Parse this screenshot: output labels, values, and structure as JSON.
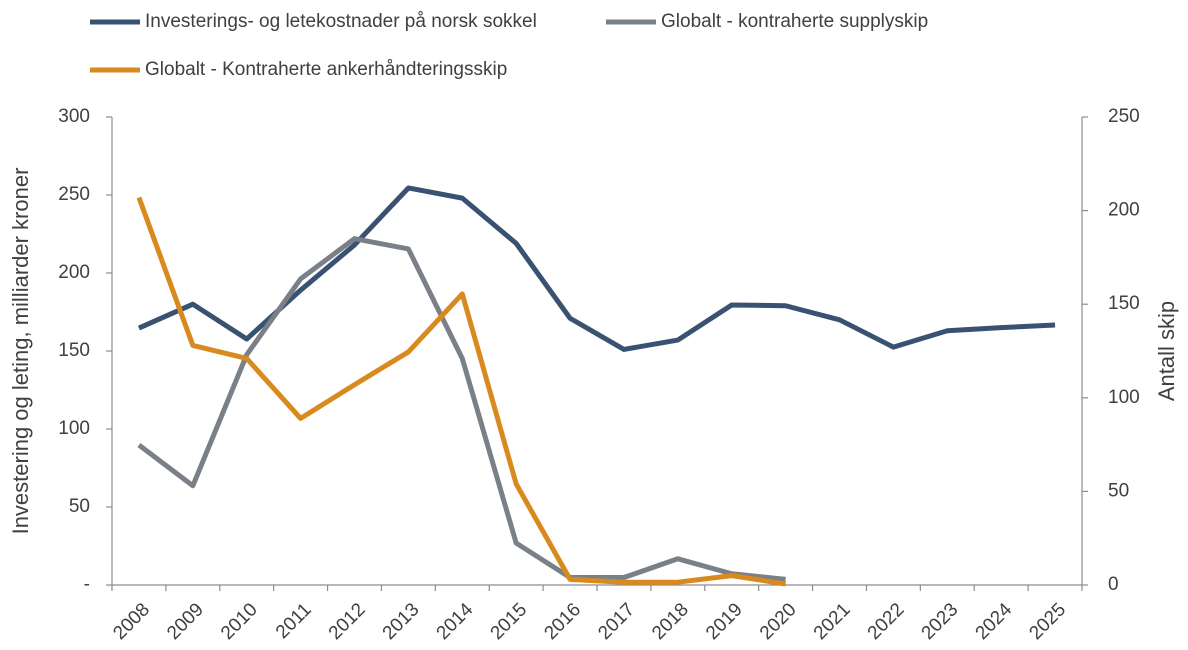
{
  "chart_data": {
    "type": "line",
    "categories": [
      "2008",
      "2009",
      "2010",
      "2011",
      "2012",
      "2013",
      "2014",
      "2015",
      "2016",
      "2017",
      "2018",
      "2019",
      "2020",
      "2021",
      "2022",
      "2023",
      "2024",
      "2025"
    ],
    "ylabel": "Investering og leting, milliarder kroner",
    "y2label": "Antall skip",
    "ylim": [
      0,
      300
    ],
    "yticks": [
      {
        "value": 0,
        "label": "-"
      },
      50,
      100,
      150,
      200,
      250,
      300
    ],
    "y2lim": [
      0,
      250
    ],
    "y2ticks": [
      0,
      50,
      100,
      150,
      200,
      250
    ],
    "series": [
      {
        "name": "Investerings- og letekostnader på norsk sokkel",
        "color": "#3a5272",
        "values": [
          164.7,
          180,
          157.7,
          189,
          218,
          254.5,
          248,
          219,
          171,
          151,
          157,
          179.5,
          179,
          170,
          152.5,
          163,
          165,
          166.7
        ]
      },
      {
        "name": "Globalt - kontraherte supplyskip",
        "color": "#7a8088",
        "axis": "y2",
        "values": [
          74.8,
          53,
          123,
          163.5,
          185,
          179.5,
          121,
          22.4,
          4,
          4,
          14,
          6,
          3,
          null,
          null,
          null,
          null,
          null
        ]
      },
      {
        "name": "Globalt - Kontraherte ankerhåndteringsskip",
        "color": "#d98a1e",
        "axis": "y2",
        "values": [
          207,
          128,
          121,
          89,
          107,
          124.5,
          155.5,
          54,
          3,
          1.5,
          1.5,
          5,
          0.5,
          null,
          null,
          null,
          null,
          null
        ]
      }
    ]
  }
}
